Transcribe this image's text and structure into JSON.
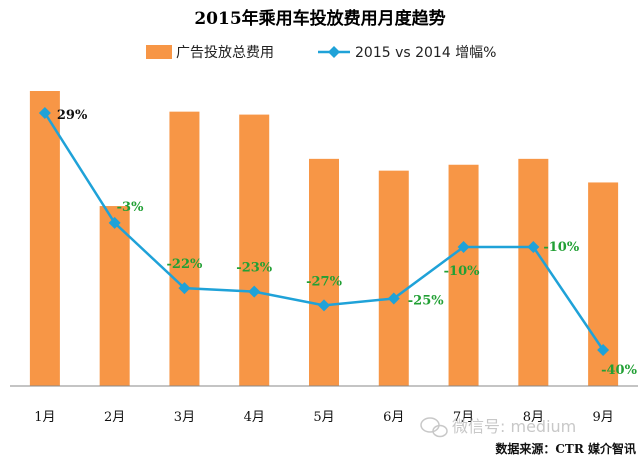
{
  "chart_data": {
    "type": "bar+line",
    "title": "2015年乘用车投放费用月度趋势",
    "categories": [
      "1月",
      "2月",
      "3月",
      "4月",
      "5月",
      "6月",
      "7月",
      "8月",
      "9月"
    ],
    "series": [
      {
        "name": "广告投放总费用",
        "type": "bar",
        "color": "#F79646",
        "values": [
          100,
          61,
          93,
          92,
          77,
          73,
          75,
          77,
          69
        ]
      },
      {
        "name": "2015 vs 2014 增幅%",
        "type": "line",
        "color": "#1FA2D8",
        "values": [
          29,
          -3,
          -22,
          -23,
          -27,
          -25,
          -10,
          -10,
          -40
        ],
        "labels": [
          "29%",
          "-3%",
          "-22%",
          "-23%",
          "-27%",
          "-25%",
          "-10%",
          "-10%",
          "-40%"
        ],
        "label_colors": [
          "#111111",
          "#22A035",
          "#22A035",
          "#22A035",
          "#22A035",
          "#22A035",
          "#22A035",
          "#22A035",
          "#22A035"
        ]
      }
    ],
    "legend_position": "top"
  },
  "source": "数据来源：CTR 媒介智讯",
  "watermark": "微信号: medium"
}
